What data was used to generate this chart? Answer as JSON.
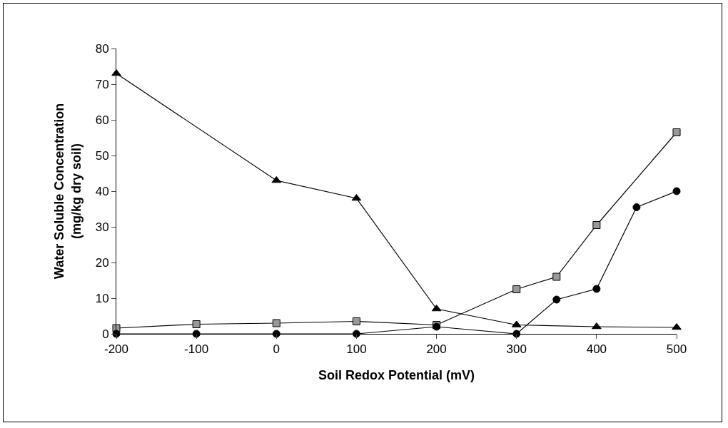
{
  "chart_data": {
    "type": "line",
    "xlabel": "Soil Redox Potential (mV)",
    "ylabel": "Water Soluble Concentration\n(mg/kg dry soil)",
    "xlim": [
      -200,
      500
    ],
    "xticks": [
      -200,
      -100,
      0,
      100,
      200,
      300,
      400,
      500
    ],
    "ylim": [
      0,
      80
    ],
    "yticks": [
      0,
      10,
      20,
      30,
      40,
      50,
      60,
      70,
      80
    ],
    "series": [
      {
        "color": "#000000",
        "marker": "triangle",
        "x": [
          -200,
          0,
          100,
          200,
          300,
          400,
          500
        ],
        "values": [
          73,
          43,
          38,
          7,
          2.5,
          2,
          1.8
        ]
      },
      {
        "color": "#000000",
        "marker": "square",
        "x": [
          -200,
          -100,
          0,
          100,
          200,
          300,
          350,
          400,
          500
        ],
        "values": [
          1.6,
          2.7,
          3,
          3.5,
          2.5,
          12.5,
          16,
          30.5,
          56.5
        ]
      },
      {
        "color": "#000000",
        "marker": "circle",
        "x": [
          -200,
          -100,
          0,
          100,
          200,
          300,
          350,
          400,
          450,
          500
        ],
        "values": [
          0,
          0,
          0,
          0,
          2,
          0,
          9.6,
          12.6,
          35.5,
          40
        ]
      }
    ]
  }
}
